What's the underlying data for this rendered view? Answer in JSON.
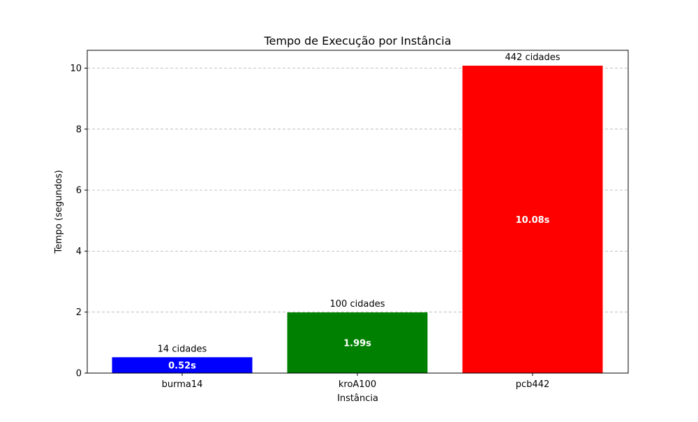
{
  "chart_data": {
    "type": "bar",
    "title": "Tempo de Execução por Instância",
    "xlabel": "Instância",
    "ylabel": "Tempo (segundos)",
    "categories": [
      "burma14",
      "kroA100",
      "pcb442"
    ],
    "values": [
      0.52,
      1.99,
      10.08
    ],
    "value_labels": [
      "0.52s",
      "1.99s",
      "10.08s"
    ],
    "annotations": [
      "14 cidades",
      "100 cidades",
      "442 cidades"
    ],
    "colors": [
      "#0000ff",
      "#008000",
      "#ff0000"
    ],
    "ylim": [
      0,
      10.584
    ],
    "yticks": [
      0,
      2,
      4,
      6,
      8,
      10
    ],
    "grid": "y-dashed",
    "legend": "none"
  }
}
